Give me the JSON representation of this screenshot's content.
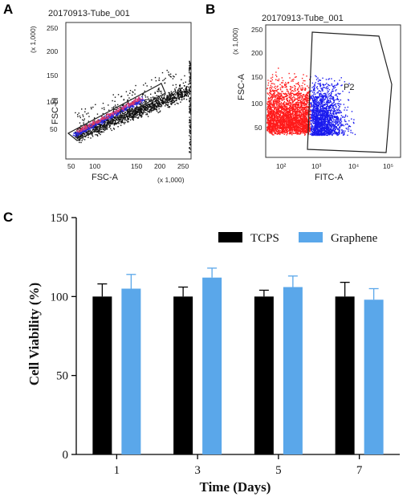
{
  "panels": {
    "a": {
      "letter": "A",
      "title": "20170913-Tube_001",
      "xlabel": "FSC-A",
      "ylabel": "FSC-H",
      "xmult": "(x 1,000)",
      "ymult": "(x 1,000)",
      "gate": "P1",
      "xticks": [
        "50",
        "100",
        "150",
        "200",
        "250"
      ],
      "yticks": [
        "50",
        "100",
        "150",
        "200",
        "250"
      ]
    },
    "b": {
      "letter": "B",
      "title": "20170913-Tube_001",
      "xlabel": "FITC-A",
      "ylabel": "FSC-A",
      "ymult": "(x 1,000)",
      "gate": "P2",
      "xticks": [
        "10²",
        "10³",
        "10⁴",
        "10⁵"
      ],
      "yticks": [
        "50",
        "100",
        "150",
        "200",
        "250"
      ]
    },
    "c": {
      "letter": "C"
    }
  },
  "chart_data": {
    "type": "bar",
    "categories": [
      "1",
      "3",
      "5",
      "7"
    ],
    "series": [
      {
        "name": "TCPS",
        "color": "#000000",
        "values": [
          100,
          100,
          100,
          100
        ],
        "errors": [
          8,
          6,
          4,
          9
        ]
      },
      {
        "name": "Graphene",
        "color": "#5aa7ea",
        "values": [
          105,
          112,
          106,
          98
        ],
        "errors": [
          9,
          6,
          7,
          7
        ]
      }
    ],
    "xlabel": "Time (Days)",
    "ylabel": "Cell Viability (%)",
    "ylim": [
      0,
      150
    ],
    "yticks": [
      "0",
      "50",
      "100",
      "150"
    ],
    "legend": "top-right"
  }
}
